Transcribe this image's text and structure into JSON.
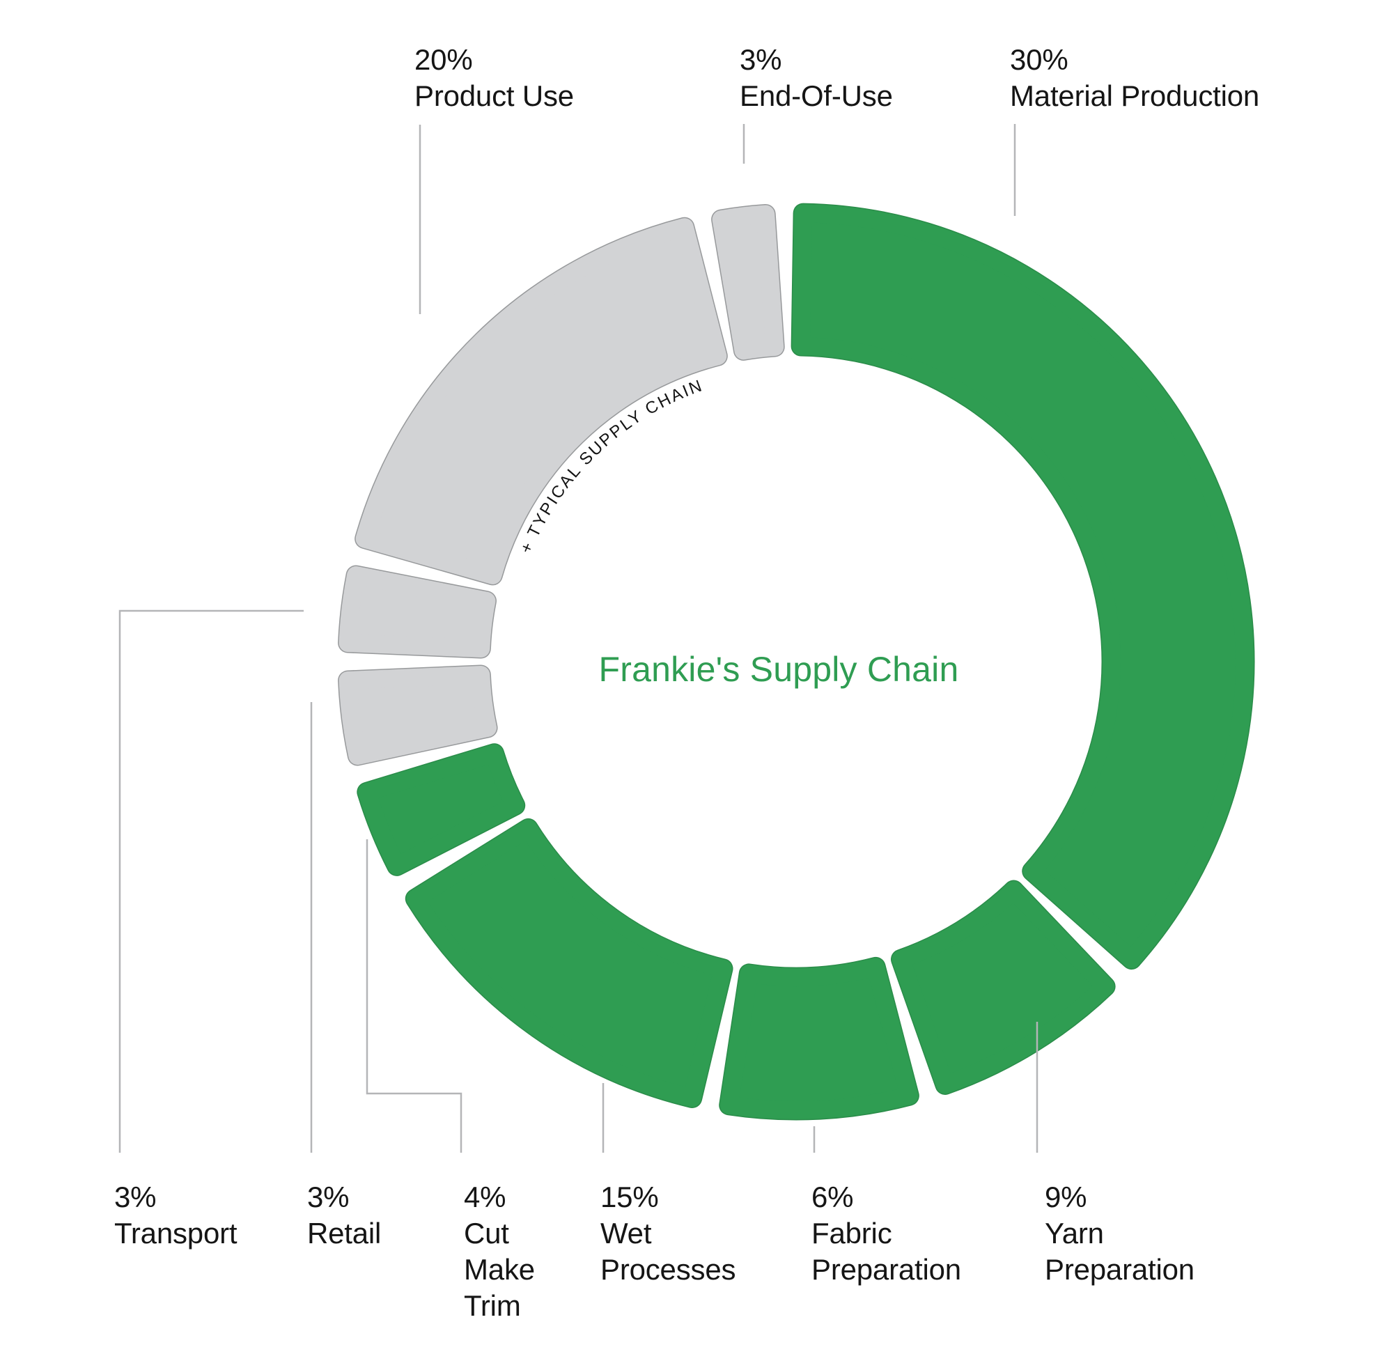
{
  "chart_data": {
    "type": "donut",
    "title": "Frankie's Supply Chain",
    "inner_arc_label": "+ TYPICAL SUPPLY CHAIN",
    "legend_position": "none",
    "colors": {
      "frankies": "#2F9D52",
      "frankies_rim": "#2A8C49",
      "typical": "#D2D3D5",
      "typical_rim": "#97999B",
      "title_text": "#2F9D52",
      "label_text": "#151515",
      "leader_line": "#B4B5B7"
    },
    "segments": [
      {
        "id": "material-production",
        "label": "Material Production",
        "value_pct": 30,
        "group": "frankies",
        "start_deg": -0.5,
        "end_deg": 133.0
      },
      {
        "id": "yarn-preparation",
        "label": "Yarn Preparation",
        "value_pct": 9,
        "group": "frankies",
        "start_deg": 135.0,
        "end_deg": 162.0
      },
      {
        "id": "fabric-preparation",
        "label": "Fabric Preparation",
        "value_pct": 6,
        "group": "frankies",
        "start_deg": 164.0,
        "end_deg": 190.0
      },
      {
        "id": "wet-processes",
        "label": "Wet Processes",
        "value_pct": 15,
        "group": "frankies",
        "start_deg": 192.0,
        "end_deg": 239.5
      },
      {
        "id": "cut-make-trim",
        "label": "Cut Make Trim",
        "value_pct": 4,
        "group": "frankies",
        "start_deg": 241.5,
        "end_deg": 254.5
      },
      {
        "id": "retail",
        "label": "Retail",
        "value_pct": 3,
        "group": "typical",
        "start_deg": 256.5,
        "end_deg": 269.0
      },
      {
        "id": "transport",
        "label": "Transport",
        "value_pct": 3,
        "group": "typical",
        "start_deg": 271.0,
        "end_deg": 282.5
      },
      {
        "id": "product-use",
        "label": "Product Use",
        "value_pct": 20,
        "group": "typical",
        "start_deg": 284.5,
        "end_deg": 347.0
      },
      {
        "id": "end-of-use",
        "label": "End-Of-Use",
        "value_pct": 3,
        "group": "typical",
        "start_deg": 349.0,
        "end_deg": 357.5
      }
    ]
  },
  "callouts": {
    "product_use": {
      "lines": [
        "20%",
        "Product Use"
      ]
    },
    "end_of_use": {
      "lines": [
        "3%",
        "End-Of-Use"
      ]
    },
    "material_production": {
      "lines": [
        "30%",
        "Material Production"
      ]
    },
    "transport": {
      "lines": [
        "3%",
        "Transport"
      ]
    },
    "retail": {
      "lines": [
        "3%",
        "Retail"
      ]
    },
    "cut_make_trim": {
      "lines": [
        "4%",
        "Cut",
        "Make",
        "Trim"
      ]
    },
    "wet_processes": {
      "lines": [
        "15%",
        "Wet",
        "Processes"
      ]
    },
    "fabric_preparation": {
      "lines": [
        "6%",
        "Fabric",
        "Preparation"
      ]
    },
    "yarn_preparation": {
      "lines": [
        "9%",
        "Yarn",
        "Preparation"
      ]
    }
  }
}
